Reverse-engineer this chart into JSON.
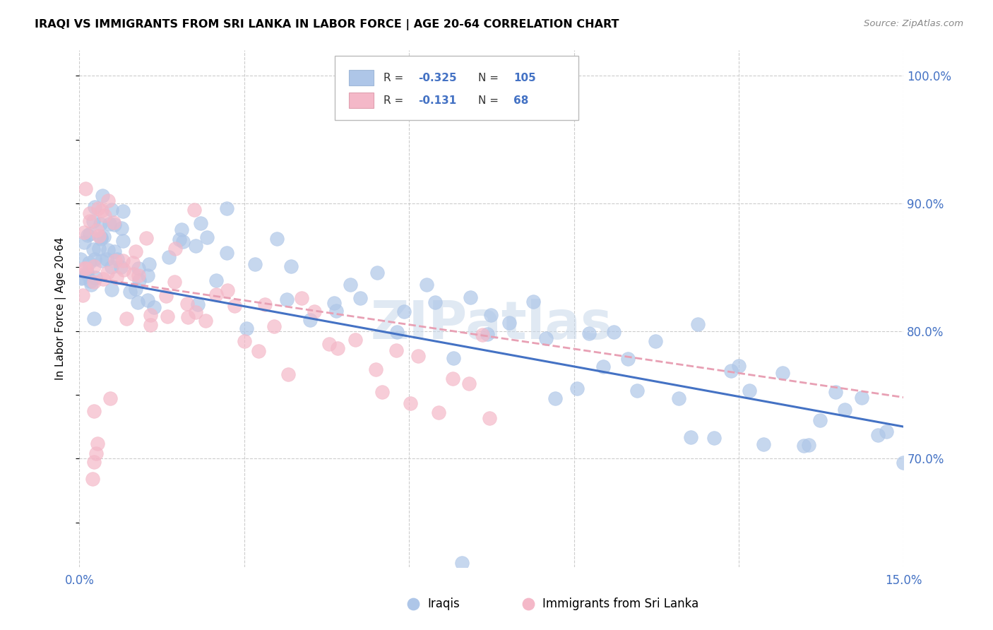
{
  "title": "IRAQI VS IMMIGRANTS FROM SRI LANKA IN LABOR FORCE | AGE 20-64 CORRELATION CHART",
  "source": "Source: ZipAtlas.com",
  "ylabel": "In Labor Force | Age 20-64",
  "xlim": [
    0.0,
    0.15
  ],
  "ylim": [
    0.615,
    1.02
  ],
  "x_ticks": [
    0.0,
    0.03,
    0.06,
    0.09,
    0.12,
    0.15
  ],
  "x_tick_labels": [
    "0.0%",
    "",
    "",
    "",
    "",
    "15.0%"
  ],
  "y_ticks": [
    0.7,
    0.8,
    0.9,
    1.0
  ],
  "y_tick_labels": [
    "70.0%",
    "80.0%",
    "90.0%",
    "100.0%"
  ],
  "watermark": "ZIPatlas",
  "iraqis_color": "#aec6e8",
  "srilanka_color": "#f4b8c8",
  "trend_iraqis_color": "#4472c4",
  "trend_srilanka_color": "#e8a0b4",
  "iraqis_R": -0.325,
  "iraqis_N": 105,
  "srilanka_R": -0.131,
  "srilanka_N": 68,
  "iraqis_x": [
    0.0005,
    0.0007,
    0.0008,
    0.001,
    0.0012,
    0.0013,
    0.0015,
    0.0016,
    0.0018,
    0.002,
    0.0022,
    0.0023,
    0.0025,
    0.0027,
    0.003,
    0.0032,
    0.0034,
    0.0035,
    0.0037,
    0.004,
    0.0042,
    0.0043,
    0.0045,
    0.0047,
    0.005,
    0.0052,
    0.0055,
    0.0057,
    0.006,
    0.0062,
    0.0065,
    0.007,
    0.0072,
    0.0075,
    0.008,
    0.0082,
    0.0085,
    0.009,
    0.0092,
    0.0095,
    0.01,
    0.011,
    0.012,
    0.013,
    0.014,
    0.015,
    0.016,
    0.017,
    0.018,
    0.019,
    0.02,
    0.021,
    0.022,
    0.023,
    0.025,
    0.027,
    0.028,
    0.03,
    0.032,
    0.035,
    0.038,
    0.04,
    0.042,
    0.045,
    0.047,
    0.05,
    0.052,
    0.055,
    0.058,
    0.06,
    0.062,
    0.065,
    0.068,
    0.07,
    0.073,
    0.075,
    0.078,
    0.082,
    0.085,
    0.088,
    0.09,
    0.092,
    0.095,
    0.098,
    0.1,
    0.102,
    0.105,
    0.108,
    0.11,
    0.112,
    0.115,
    0.118,
    0.12,
    0.122,
    0.125,
    0.128,
    0.13,
    0.132,
    0.135,
    0.138,
    0.14,
    0.142,
    0.145,
    0.148,
    0.15,
    0.07
  ],
  "iraqis_y": [
    0.845,
    0.838,
    0.832,
    0.855,
    0.848,
    0.84,
    0.852,
    0.844,
    0.837,
    0.86,
    0.853,
    0.846,
    0.856,
    0.848,
    0.865,
    0.858,
    0.87,
    0.862,
    0.875,
    0.88,
    0.873,
    0.866,
    0.885,
    0.877,
    0.87,
    0.863,
    0.875,
    0.868,
    0.88,
    0.873,
    0.893,
    0.9,
    0.893,
    0.886,
    0.878,
    0.87,
    0.862,
    0.858,
    0.85,
    0.842,
    0.855,
    0.858,
    0.85,
    0.858,
    0.852,
    0.858,
    0.862,
    0.855,
    0.848,
    0.842,
    0.855,
    0.85,
    0.858,
    0.852,
    0.86,
    0.852,
    0.855,
    0.835,
    0.842,
    0.848,
    0.84,
    0.838,
    0.832,
    0.84,
    0.834,
    0.832,
    0.828,
    0.825,
    0.82,
    0.818,
    0.815,
    0.81,
    0.808,
    0.812,
    0.808,
    0.804,
    0.8,
    0.796,
    0.792,
    0.788,
    0.785,
    0.782,
    0.778,
    0.774,
    0.772,
    0.77,
    0.768,
    0.765,
    0.762,
    0.76,
    0.758,
    0.755,
    0.752,
    0.75,
    0.748,
    0.745,
    0.742,
    0.74,
    0.738,
    0.735,
    0.732,
    0.73,
    0.728,
    0.725,
    0.722,
    0.625
  ],
  "srilanka_x": [
    0.0005,
    0.0007,
    0.001,
    0.0012,
    0.0015,
    0.0018,
    0.002,
    0.0023,
    0.0025,
    0.003,
    0.0033,
    0.0037,
    0.004,
    0.0043,
    0.0047,
    0.005,
    0.0053,
    0.006,
    0.0063,
    0.007,
    0.0073,
    0.008,
    0.0083,
    0.009,
    0.0095,
    0.01,
    0.011,
    0.012,
    0.013,
    0.014,
    0.015,
    0.016,
    0.017,
    0.018,
    0.019,
    0.02,
    0.021,
    0.022,
    0.023,
    0.025,
    0.027,
    0.028,
    0.03,
    0.032,
    0.034,
    0.036,
    0.038,
    0.04,
    0.042,
    0.045,
    0.048,
    0.05,
    0.053,
    0.055,
    0.058,
    0.06,
    0.062,
    0.065,
    0.068,
    0.07,
    0.073,
    0.075,
    0.002,
    0.0025,
    0.003,
    0.0035,
    0.004,
    0.005
  ],
  "srilanka_y": [
    0.862,
    0.875,
    0.888,
    0.882,
    0.895,
    0.888,
    0.882,
    0.875,
    0.868,
    0.875,
    0.868,
    0.875,
    0.868,
    0.862,
    0.855,
    0.868,
    0.862,
    0.855,
    0.848,
    0.855,
    0.848,
    0.852,
    0.845,
    0.848,
    0.842,
    0.848,
    0.845,
    0.842,
    0.84,
    0.838,
    0.842,
    0.838,
    0.835,
    0.832,
    0.83,
    0.835,
    0.832,
    0.828,
    0.825,
    0.822,
    0.818,
    0.815,
    0.812,
    0.81,
    0.808,
    0.805,
    0.802,
    0.8,
    0.798,
    0.795,
    0.792,
    0.788,
    0.785,
    0.782,
    0.778,
    0.775,
    0.772,
    0.768,
    0.765,
    0.762,
    0.758,
    0.755,
    0.715,
    0.718,
    0.722,
    0.725,
    0.728,
    0.73
  ]
}
